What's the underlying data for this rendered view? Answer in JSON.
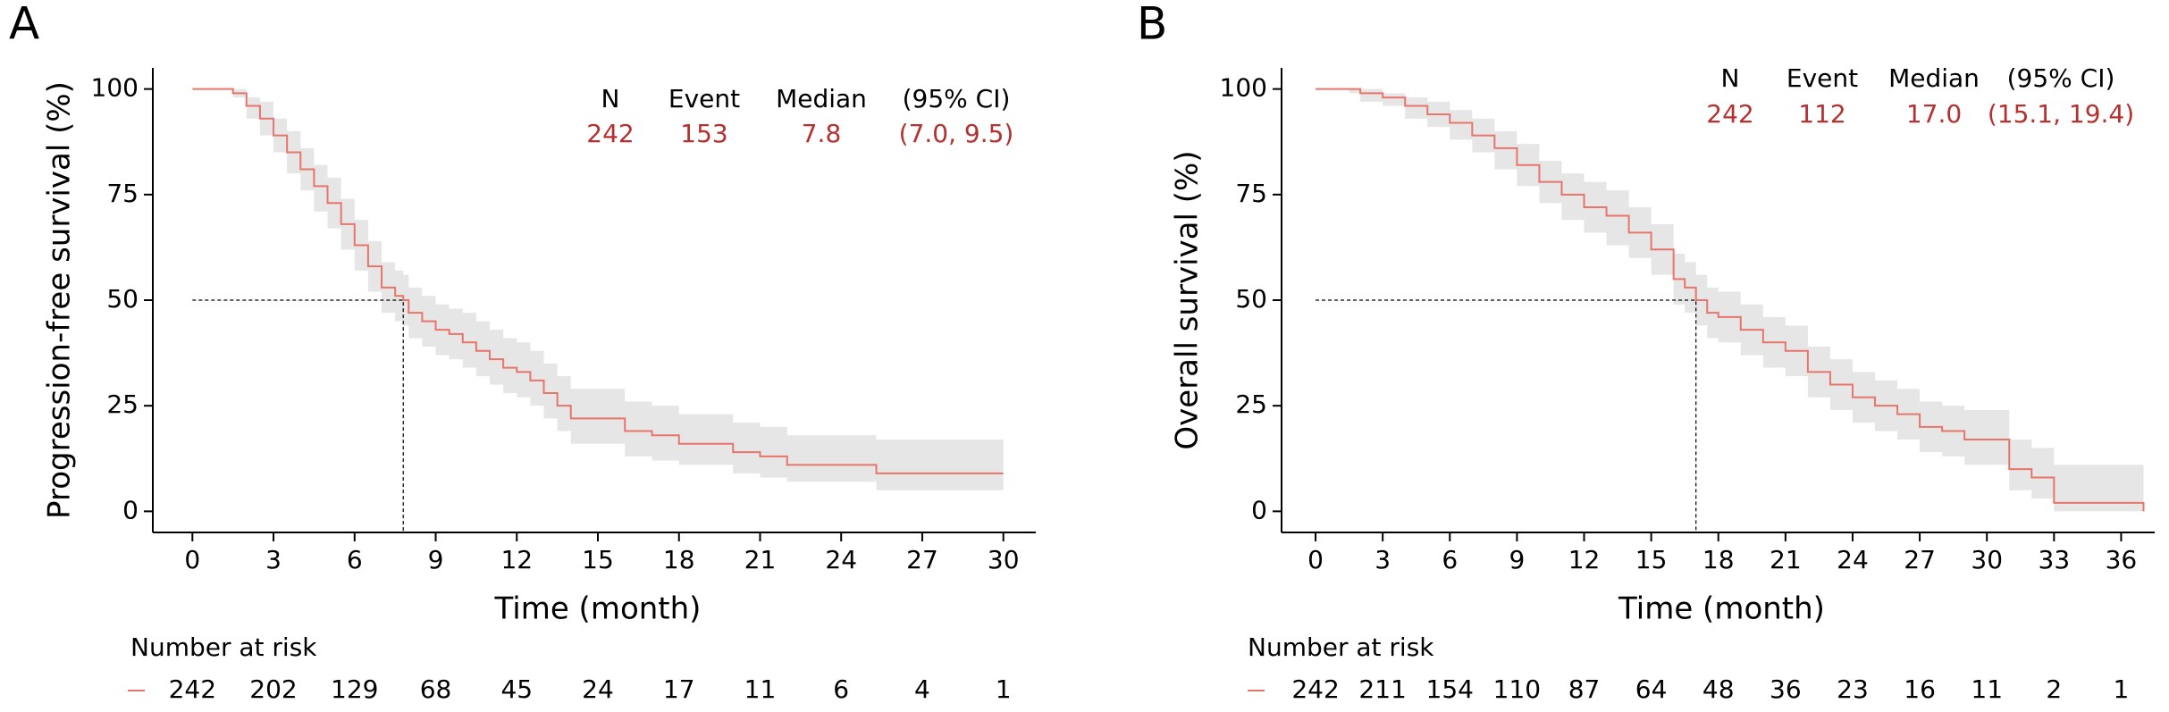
{
  "chart_data": [
    {
      "type": "line",
      "panel": "A",
      "ylabel": "Progression-free survival (%)",
      "xlabel": "Time (month)",
      "xlim": [
        -1.2,
        31.2
      ],
      "xticks": [
        0,
        3,
        6,
        9,
        12,
        15,
        18,
        21,
        24,
        27,
        30
      ],
      "ylim": [
        -5,
        105
      ],
      "yticks": [
        0,
        25,
        50,
        75,
        100
      ],
      "step": true,
      "stats_header": [
        "N",
        "Event",
        "Median",
        "(95% CI)"
      ],
      "n": 242,
      "events": 153,
      "median": 7.8,
      "ci": "(7.0, 9.5)",
      "risk_title": "Number at risk",
      "at_risk": [
        242,
        202,
        129,
        68,
        45,
        24,
        17,
        11,
        6,
        4,
        1
      ],
      "band_color": "#e6e6e6",
      "color": "#e8756b",
      "stats_color": "#b5302e",
      "x": [
        0,
        1.5,
        2,
        2.5,
        3,
        3.5,
        4,
        4.5,
        5,
        5.5,
        6,
        6.5,
        7,
        7.5,
        7.8,
        8,
        8.5,
        9,
        9.5,
        10,
        10.5,
        11,
        11.5,
        12,
        12.5,
        13,
        13.5,
        14,
        16,
        17,
        18,
        20,
        21,
        22,
        25.3,
        30
      ],
      "values": [
        100,
        99,
        96,
        93,
        89,
        85,
        81,
        77,
        73,
        68,
        63,
        58,
        53,
        51,
        50,
        47,
        45,
        43,
        42,
        40,
        38,
        36,
        34,
        33,
        31,
        28,
        25,
        22,
        19,
        18,
        16,
        14,
        13,
        11,
        9,
        9
      ],
      "ci_lower": [
        100,
        98,
        93,
        89,
        85,
        80,
        76,
        71,
        67,
        62,
        57,
        52,
        47,
        45,
        44,
        41,
        39,
        37,
        36,
        34,
        32,
        30,
        28,
        27,
        25,
        22,
        19,
        16,
        13,
        12,
        11,
        9,
        8,
        7,
        5,
        5
      ],
      "ci_upper": [
        100,
        100,
        98,
        97,
        93,
        90,
        86,
        82,
        79,
        74,
        69,
        64,
        59,
        57,
        56,
        53,
        51,
        49,
        48,
        47,
        45,
        43,
        41,
        40,
        38,
        35,
        32,
        29,
        26,
        25,
        23,
        21,
        20,
        18,
        17,
        17
      ]
    },
    {
      "type": "line",
      "panel": "B",
      "ylabel": "Overall survival (%)",
      "xlabel": "Time (month)",
      "xlim": [
        -1.2,
        37.5
      ],
      "xticks": [
        0,
        3,
        6,
        9,
        12,
        15,
        18,
        21,
        24,
        27,
        30,
        33,
        36
      ],
      "ylim": [
        -5,
        105
      ],
      "yticks": [
        0,
        25,
        50,
        75,
        100
      ],
      "step": true,
      "stats_header": [
        "N",
        "Event",
        "Median",
        "(95% CI)"
      ],
      "n": 242,
      "events": 112,
      "median": {
        "value": 17.0,
        "label": "17.0"
      },
      "ci": "(15.1, 19.4)",
      "risk_title": "Number at risk",
      "at_risk": [
        242,
        211,
        154,
        110,
        87,
        64,
        48,
        36,
        23,
        16,
        11,
        2,
        1
      ],
      "band_color": "#e6e6e6",
      "color": "#e8756b",
      "stats_color": "#b5302e",
      "x": [
        0,
        1.5,
        2,
        3,
        4,
        5,
        6,
        7,
        8,
        9,
        10,
        11,
        12,
        13,
        14,
        15,
        16,
        16.5,
        17,
        17.5,
        18,
        19,
        20,
        21,
        22,
        23,
        24,
        25,
        26,
        27,
        28,
        29,
        31,
        32,
        33,
        37
      ],
      "values": [
        100,
        100,
        99,
        98,
        96,
        94,
        92,
        89,
        86,
        82,
        78,
        75,
        72,
        70,
        66,
        62,
        55,
        53,
        50,
        47,
        46,
        43,
        40,
        38,
        33,
        30,
        27,
        25,
        23,
        20,
        19,
        17,
        10,
        8,
        2,
        0
      ],
      "ci_lower": [
        100,
        99,
        97,
        96,
        93,
        91,
        88,
        85,
        81,
        77,
        73,
        69,
        66,
        63,
        60,
        56,
        49,
        47,
        44,
        41,
        40,
        37,
        34,
        32,
        27,
        24,
        21,
        19,
        17,
        14,
        13,
        11,
        5,
        3,
        0,
        0
      ],
      "ci_upper": [
        100,
        100,
        100,
        99,
        98,
        97,
        95,
        93,
        90,
        87,
        83,
        80,
        78,
        76,
        72,
        68,
        61,
        59,
        56,
        53,
        52,
        49,
        46,
        44,
        39,
        36,
        33,
        31,
        29,
        26,
        25,
        24,
        17,
        15,
        11,
        11
      ]
    }
  ]
}
